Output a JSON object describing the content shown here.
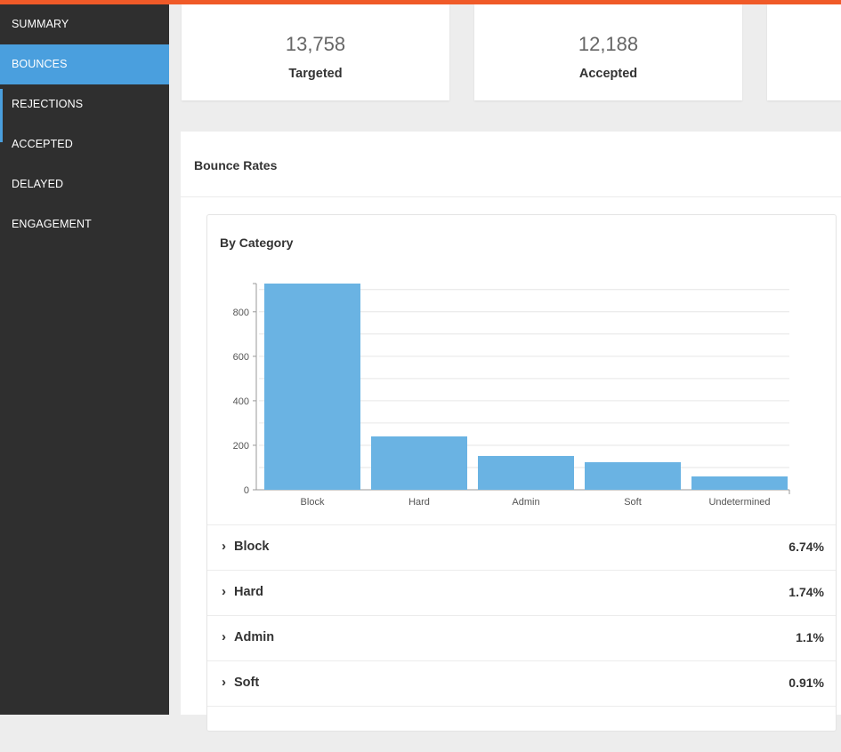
{
  "sidebar": {
    "items": [
      {
        "label": "SUMMARY"
      },
      {
        "label": "BOUNCES"
      },
      {
        "label": "REJECTIONS"
      },
      {
        "label": "ACCEPTED"
      },
      {
        "label": "DELAYED"
      },
      {
        "label": "ENGAGEMENT"
      }
    ],
    "active": "BOUNCES",
    "accent_color": "#4a9fde"
  },
  "stats": [
    {
      "value": "13,758",
      "label": "Targeted"
    },
    {
      "value": "12,188",
      "label": "Accepted"
    }
  ],
  "panel": {
    "title": "Bounce Rates",
    "chart_title": "By Category"
  },
  "chart_data": {
    "type": "bar",
    "categories": [
      "Block",
      "Hard",
      "Admin",
      "Soft",
      "Undetermined"
    ],
    "values": [
      927,
      240,
      152,
      124,
      60
    ],
    "ylim": [
      0,
      927
    ],
    "yticks": [
      0,
      200,
      400,
      600,
      800
    ],
    "grid": true,
    "bar_color": "#6ab3e3"
  },
  "categories": [
    {
      "name": "Block",
      "rate": "6.74%"
    },
    {
      "name": "Hard",
      "rate": "1.74%"
    },
    {
      "name": "Admin",
      "rate": "1.1%"
    },
    {
      "name": "Soft",
      "rate": "0.91%"
    }
  ],
  "colors": {
    "top_bar": "#f05a28",
    "sidebar_bg": "#2f2f2f"
  }
}
